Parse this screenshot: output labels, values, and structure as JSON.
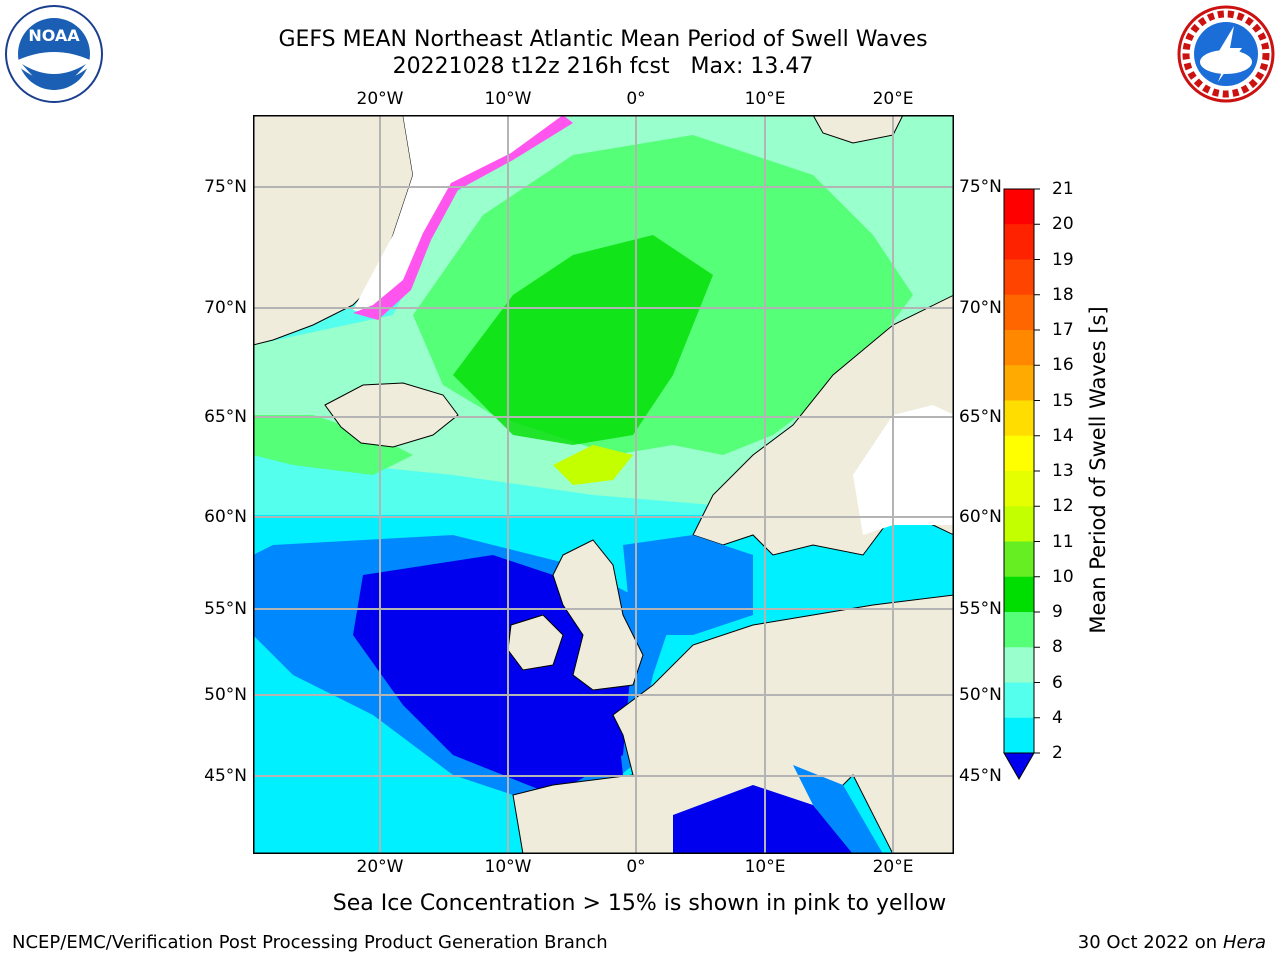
{
  "title": {
    "line1": "GEFS MEAN Northeast Atlantic Mean Period of Swell Waves",
    "line2": "20221028 t12z 216h fcst   Max: 13.47"
  },
  "map": {
    "lon_labels": [
      "20°W",
      "10°W",
      "0°",
      "10°E",
      "20°E"
    ],
    "lat_labels": [
      "75°N",
      "70°N",
      "65°N",
      "60°N",
      "55°N",
      "50°N",
      "45°N"
    ],
    "land_color": "#efecdc",
    "grid_color": "#b4b4b4"
  },
  "colorbar": {
    "label": "Mean Period of Swell Waves [s]",
    "ticks": [
      "21",
      "20",
      "19",
      "18",
      "17",
      "16",
      "15",
      "14",
      "13",
      "12",
      "11",
      "10",
      "9",
      "8",
      "6",
      "4",
      "2"
    ],
    "colors_top_to_bottom": [
      "#ff0000",
      "#ff2200",
      "#ff4400",
      "#ff6600",
      "#ff8800",
      "#ffaa00",
      "#ffdd00",
      "#ffff00",
      "#e6ff00",
      "#c4ff00",
      "#66ee22",
      "#00dd00",
      "#55ff77",
      "#99ffcc",
      "#55ffee",
      "#00f0ff",
      "#0088ff",
      "#0000ee"
    ]
  },
  "footnote": "Sea Ice Concentration > 15% is shown in pink to yellow",
  "credit_left": "NCEP/EMC/Verification Post Processing Product Generation Branch",
  "credit_right_date": "30 Oct 2022 on ",
  "credit_right_host": "Hera",
  "logos": {
    "left": "noaa-logo",
    "right": "nws-logo"
  }
}
